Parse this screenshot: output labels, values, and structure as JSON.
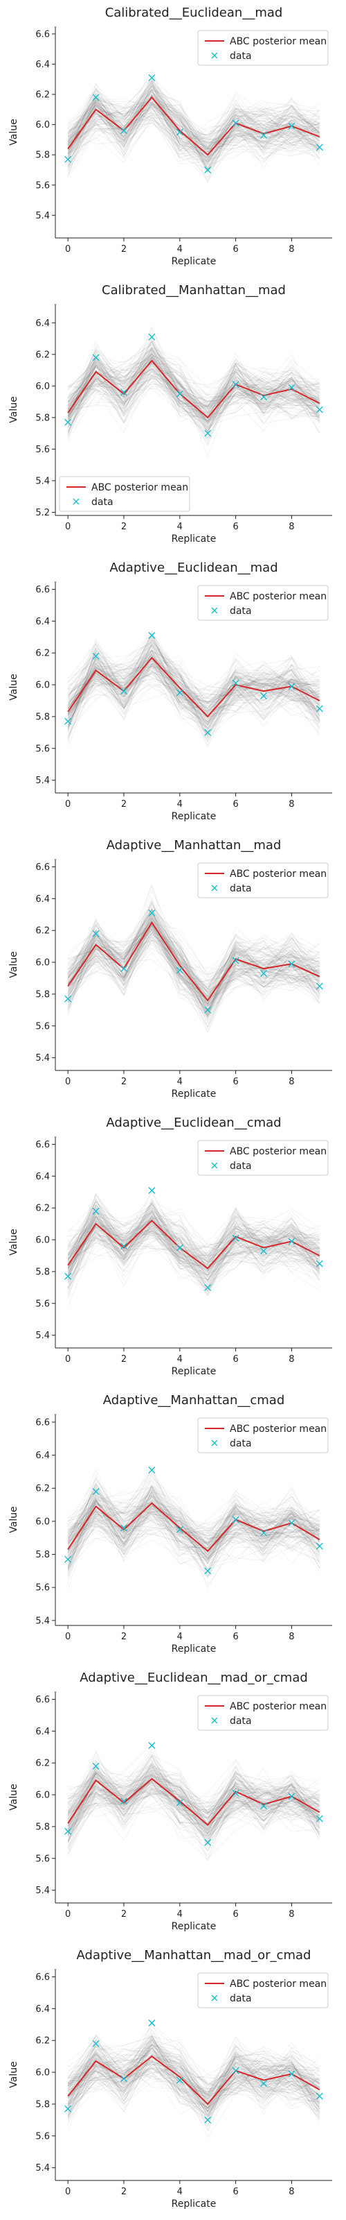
{
  "chart_data": [
    {
      "type": "line",
      "title": "Calibrated__Euclidean__mad",
      "xlabel": "Replicate",
      "ylabel": "Value",
      "xlim": [
        -0.45,
        9.45
      ],
      "ylim": [
        5.25,
        6.65
      ],
      "xticks": [
        0,
        2,
        4,
        6,
        8
      ],
      "yticks": [
        5.4,
        5.6,
        5.8,
        6.0,
        6.2,
        6.4,
        6.6
      ],
      "legend_position": "upper right",
      "x": [
        0,
        1,
        2,
        3,
        4,
        5,
        6,
        7,
        8,
        9
      ],
      "series": [
        {
          "name": "ABC posterior mean",
          "kind": "line",
          "color": "#d62728",
          "values": [
            5.84,
            6.1,
            5.96,
            6.18,
            5.96,
            5.8,
            6.01,
            5.94,
            5.99,
            5.92
          ]
        },
        {
          "name": "data",
          "kind": "marker",
          "color": "#17becf",
          "values": [
            5.77,
            6.18,
            5.96,
            6.31,
            5.95,
            5.7,
            6.01,
            5.93,
            5.99,
            5.85
          ]
        }
      ]
    },
    {
      "type": "line",
      "title": "Calibrated__Manhattan__mad",
      "xlabel": "Replicate",
      "ylabel": "Value",
      "xlim": [
        -0.45,
        9.45
      ],
      "ylim": [
        5.18,
        6.52
      ],
      "xticks": [
        0,
        2,
        4,
        6,
        8
      ],
      "yticks": [
        5.2,
        5.4,
        5.6,
        5.8,
        6.0,
        6.2,
        6.4
      ],
      "legend_position": "lower left",
      "x": [
        0,
        1,
        2,
        3,
        4,
        5,
        6,
        7,
        8,
        9
      ],
      "series": [
        {
          "name": "ABC posterior mean",
          "kind": "line",
          "color": "#d62728",
          "values": [
            5.83,
            6.09,
            5.95,
            6.16,
            5.95,
            5.8,
            6.01,
            5.94,
            5.98,
            5.89
          ]
        },
        {
          "name": "data",
          "kind": "marker",
          "color": "#17becf",
          "values": [
            5.77,
            6.18,
            5.96,
            6.31,
            5.95,
            5.7,
            6.01,
            5.93,
            5.99,
            5.85
          ]
        }
      ]
    },
    {
      "type": "line",
      "title": "Adaptive__Euclidean__mad",
      "xlabel": "Replicate",
      "ylabel": "Value",
      "xlim": [
        -0.45,
        9.45
      ],
      "ylim": [
        5.32,
        6.65
      ],
      "xticks": [
        0,
        2,
        4,
        6,
        8
      ],
      "yticks": [
        5.4,
        5.6,
        5.8,
        6.0,
        6.2,
        6.4,
        6.6
      ],
      "legend_position": "upper right",
      "x": [
        0,
        1,
        2,
        3,
        4,
        5,
        6,
        7,
        8,
        9
      ],
      "series": [
        {
          "name": "ABC posterior mean",
          "kind": "line",
          "color": "#d62728",
          "values": [
            5.83,
            6.09,
            5.96,
            6.17,
            5.98,
            5.8,
            6.0,
            5.96,
            5.99,
            5.9
          ]
        },
        {
          "name": "data",
          "kind": "marker",
          "color": "#17becf",
          "values": [
            5.77,
            6.18,
            5.96,
            6.31,
            5.95,
            5.7,
            6.01,
            5.93,
            5.99,
            5.85
          ]
        }
      ]
    },
    {
      "type": "line",
      "title": "Adaptive__Manhattan__mad",
      "xlabel": "Replicate",
      "ylabel": "Value",
      "xlim": [
        -0.45,
        9.45
      ],
      "ylim": [
        5.32,
        6.65
      ],
      "xticks": [
        0,
        2,
        4,
        6,
        8
      ],
      "yticks": [
        5.4,
        5.6,
        5.8,
        6.0,
        6.2,
        6.4,
        6.6
      ],
      "legend_position": "upper right",
      "x": [
        0,
        1,
        2,
        3,
        4,
        5,
        6,
        7,
        8,
        9
      ],
      "series": [
        {
          "name": "ABC posterior mean",
          "kind": "line",
          "color": "#d62728",
          "values": [
            5.85,
            6.11,
            5.96,
            6.25,
            5.98,
            5.76,
            6.02,
            5.96,
            5.99,
            5.91
          ]
        },
        {
          "name": "data",
          "kind": "marker",
          "color": "#17becf",
          "values": [
            5.77,
            6.18,
            5.96,
            6.31,
            5.95,
            5.7,
            6.01,
            5.93,
            5.99,
            5.85
          ]
        }
      ]
    },
    {
      "type": "line",
      "title": "Adaptive__Euclidean__cmad",
      "xlabel": "Replicate",
      "ylabel": "Value",
      "xlim": [
        -0.45,
        9.45
      ],
      "ylim": [
        5.32,
        6.65
      ],
      "xticks": [
        0,
        2,
        4,
        6,
        8
      ],
      "yticks": [
        5.4,
        5.6,
        5.8,
        6.0,
        6.2,
        6.4,
        6.6
      ],
      "legend_position": "upper right",
      "x": [
        0,
        1,
        2,
        3,
        4,
        5,
        6,
        7,
        8,
        9
      ],
      "series": [
        {
          "name": "ABC posterior mean",
          "kind": "line",
          "color": "#d62728",
          "values": [
            5.84,
            6.1,
            5.95,
            6.12,
            5.95,
            5.82,
            6.02,
            5.95,
            5.99,
            5.9
          ]
        },
        {
          "name": "data",
          "kind": "marker",
          "color": "#17becf",
          "values": [
            5.77,
            6.18,
            5.96,
            6.31,
            5.95,
            5.7,
            6.01,
            5.93,
            5.99,
            5.85
          ]
        }
      ]
    },
    {
      "type": "line",
      "title": "Adaptive__Manhattan__cmad",
      "xlabel": "Replicate",
      "ylabel": "Value",
      "xlim": [
        -0.45,
        9.45
      ],
      "ylim": [
        5.37,
        6.65
      ],
      "xticks": [
        0,
        2,
        4,
        6,
        8
      ],
      "yticks": [
        5.4,
        5.6,
        5.8,
        6.0,
        6.2,
        6.4,
        6.6
      ],
      "legend_position": "upper right",
      "x": [
        0,
        1,
        2,
        3,
        4,
        5,
        6,
        7,
        8,
        9
      ],
      "series": [
        {
          "name": "ABC posterior mean",
          "kind": "line",
          "color": "#d62728",
          "values": [
            5.83,
            6.09,
            5.95,
            6.11,
            5.96,
            5.82,
            6.01,
            5.94,
            5.99,
            5.89
          ]
        },
        {
          "name": "data",
          "kind": "marker",
          "color": "#17becf",
          "values": [
            5.77,
            6.18,
            5.96,
            6.31,
            5.95,
            5.7,
            6.01,
            5.93,
            5.99,
            5.85
          ]
        }
      ]
    },
    {
      "type": "line",
      "title": "Adaptive__Euclidean__mad_or_cmad",
      "xlabel": "Replicate",
      "ylabel": "Value",
      "xlim": [
        -0.45,
        9.45
      ],
      "ylim": [
        5.32,
        6.65
      ],
      "xticks": [
        0,
        2,
        4,
        6,
        8
      ],
      "yticks": [
        5.4,
        5.6,
        5.8,
        6.0,
        6.2,
        6.4,
        6.6
      ],
      "legend_position": "upper right",
      "x": [
        0,
        1,
        2,
        3,
        4,
        5,
        6,
        7,
        8,
        9
      ],
      "series": [
        {
          "name": "ABC posterior mean",
          "kind": "line",
          "color": "#d62728",
          "values": [
            5.82,
            6.09,
            5.95,
            6.1,
            5.96,
            5.81,
            6.02,
            5.94,
            5.99,
            5.89
          ]
        },
        {
          "name": "data",
          "kind": "marker",
          "color": "#17becf",
          "values": [
            5.77,
            6.18,
            5.96,
            6.31,
            5.95,
            5.7,
            6.01,
            5.93,
            5.99,
            5.85
          ]
        }
      ]
    },
    {
      "type": "line",
      "title": "Adaptive__Manhattan__mad_or_cmad",
      "xlabel": "Replicate",
      "ylabel": "Value",
      "xlim": [
        -0.45,
        9.45
      ],
      "ylim": [
        5.32,
        6.65
      ],
      "xticks": [
        0,
        2,
        4,
        6,
        8
      ],
      "yticks": [
        5.4,
        5.6,
        5.8,
        6.0,
        6.2,
        6.4,
        6.6
      ],
      "legend_position": "upper right",
      "x": [
        0,
        1,
        2,
        3,
        4,
        5,
        6,
        7,
        8,
        9
      ],
      "series": [
        {
          "name": "ABC posterior mean",
          "kind": "line",
          "color": "#d62728",
          "values": [
            5.85,
            6.07,
            5.96,
            6.1,
            5.97,
            5.8,
            6.01,
            5.95,
            5.99,
            5.89
          ]
        },
        {
          "name": "data",
          "kind": "marker",
          "color": "#17becf",
          "values": [
            5.77,
            6.18,
            5.96,
            6.31,
            5.95,
            5.7,
            6.01,
            5.93,
            5.99,
            5.85
          ]
        }
      ]
    }
  ]
}
